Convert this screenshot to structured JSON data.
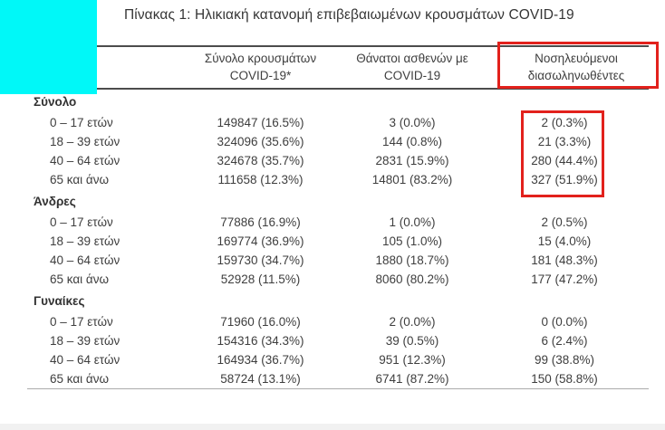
{
  "title": "Πίνακας 1: Ηλικιακή κατανομή επιβεβαιωμένων κρουσμάτων COVID-19",
  "table": {
    "col_headers": [
      {
        "line1": "Σύνολο κρουσμάτων",
        "line2": "COVID-19*"
      },
      {
        "line1": "Θάνατοι ασθενών με",
        "line2": "COVID-19"
      },
      {
        "line1": "Νοσηλευόμενοι",
        "line2": "διασωληνωθέντες"
      }
    ],
    "sections": [
      {
        "label": "Σύνολο",
        "rows": [
          {
            "age": "0 – 17 ετών",
            "cases": "149847 (16.5%)",
            "deaths": "3 (0.0%)",
            "intubated": "2 (0.3%)"
          },
          {
            "age": "18 – 39 ετών",
            "cases": "324096 (35.6%)",
            "deaths": "144 (0.8%)",
            "intubated": "21 (3.3%)"
          },
          {
            "age": "40 – 64 ετών",
            "cases": "324678 (35.7%)",
            "deaths": "2831 (15.9%)",
            "intubated": "280 (44.4%)"
          },
          {
            "age": "65 και άνω",
            "cases": "111658 (12.3%)",
            "deaths": "14801 (83.2%)",
            "intubated": "327 (51.9%)"
          }
        ]
      },
      {
        "label": "Άνδρες",
        "rows": [
          {
            "age": "0 – 17 ετών",
            "cases": "77886 (16.9%)",
            "deaths": "1 (0.0%)",
            "intubated": "2 (0.5%)"
          },
          {
            "age": "18 – 39 ετών",
            "cases": "169774 (36.9%)",
            "deaths": "105 (1.0%)",
            "intubated": "15 (4.0%)"
          },
          {
            "age": "40 – 64 ετών",
            "cases": "159730 (34.7%)",
            "deaths": "1880 (18.7%)",
            "intubated": "181 (48.3%)"
          },
          {
            "age": "65 και άνω",
            "cases": "52928 (11.5%)",
            "deaths": "8060 (80.2%)",
            "intubated": "177 (47.2%)"
          }
        ]
      },
      {
        "label": "Γυναίκες",
        "rows": [
          {
            "age": "0 – 17 ετών",
            "cases": "71960 (16.0%)",
            "deaths": "2 (0.0%)",
            "intubated": "0 (0.0%)"
          },
          {
            "age": "18 – 39 ετών",
            "cases": "154316 (34.3%)",
            "deaths": "39 (0.5%)",
            "intubated": "6 (2.4%)"
          },
          {
            "age": "40 – 64 ετών",
            "cases": "164934 (36.7%)",
            "deaths": "951 (12.3%)",
            "intubated": "99 (38.8%)"
          },
          {
            "age": "65 και άνω",
            "cases": "58724 (13.1%)",
            "deaths": "6741 (87.2%)",
            "intubated": "150 (58.8%)"
          }
        ]
      }
    ]
  },
  "annotations": {
    "red_box_color": "#e2211c",
    "cyan_mark_color": "#00f8f8"
  }
}
